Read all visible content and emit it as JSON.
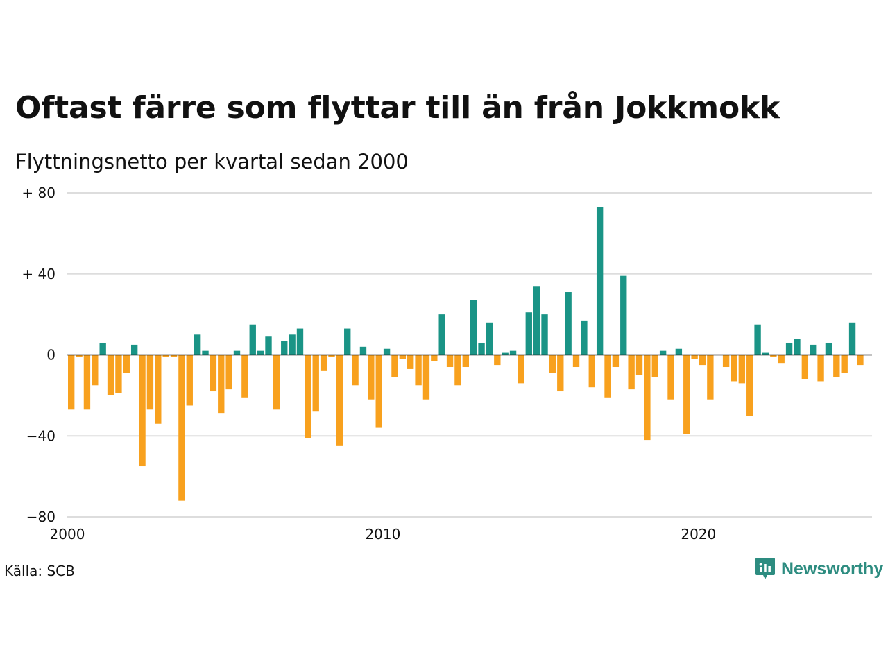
{
  "header": {
    "title": "Oftast färre som flyttar till än från Jokkmokk",
    "subtitle": "Flyttningsnetto per kvartal sedan 2000"
  },
  "footer": {
    "source": "Källa: SCB",
    "brand": "Newsworthy",
    "brand_icon": "newsworthy-logo-icon"
  },
  "colors": {
    "positive": "#1a9486",
    "negative": "#f8a11e",
    "grid": "#dddddd",
    "baseline": "#111111"
  },
  "chart_data": {
    "type": "bar",
    "title": "Oftast färre som flyttar till än från Jokkmokk",
    "subtitle": "Flyttningsnetto per kvartal sedan 2000",
    "xlabel": "",
    "ylabel": "",
    "x_start": "2000 Q1",
    "x_ticks": [
      {
        "year": 2000,
        "label": "2000"
      },
      {
        "year": 2010,
        "label": "2010"
      },
      {
        "year": 2020,
        "label": "2020"
      }
    ],
    "y_ticks": [
      {
        "value": 80,
        "label": "+ 80"
      },
      {
        "value": 40,
        "label": "+ 40"
      },
      {
        "value": 0,
        "label": "0"
      },
      {
        "value": -40,
        "label": "−40"
      },
      {
        "value": -80,
        "label": "−80"
      }
    ],
    "ylim": [
      -80,
      80
    ],
    "xlim": [
      2000,
      2025.5
    ],
    "grid": true,
    "quarters": [
      "2000 Q1",
      "2000 Q2",
      "2000 Q3",
      "2000 Q4",
      "2001 Q1",
      "2001 Q2",
      "2001 Q3",
      "2001 Q4",
      "2002 Q1",
      "2002 Q2",
      "2002 Q3",
      "2002 Q4",
      "2003 Q1",
      "2003 Q2",
      "2003 Q3",
      "2003 Q4",
      "2004 Q1",
      "2004 Q2",
      "2004 Q3",
      "2004 Q4",
      "2005 Q1",
      "2005 Q2",
      "2005 Q3",
      "2005 Q4",
      "2006 Q1",
      "2006 Q2",
      "2006 Q3",
      "2006 Q4",
      "2007 Q1",
      "2007 Q2",
      "2007 Q3",
      "2007 Q4",
      "2008 Q1",
      "2008 Q2",
      "2008 Q3",
      "2008 Q4",
      "2009 Q1",
      "2009 Q2",
      "2009 Q3",
      "2009 Q4",
      "2010 Q1",
      "2010 Q2",
      "2010 Q3",
      "2010 Q4",
      "2011 Q1",
      "2011 Q2",
      "2011 Q3",
      "2011 Q4",
      "2012 Q1",
      "2012 Q2",
      "2012 Q3",
      "2012 Q4",
      "2013 Q1",
      "2013 Q2",
      "2013 Q3",
      "2013 Q4",
      "2014 Q1",
      "2014 Q2",
      "2014 Q3",
      "2014 Q4",
      "2015 Q1",
      "2015 Q2",
      "2015 Q3",
      "2015 Q4",
      "2016 Q1",
      "2016 Q2",
      "2016 Q3",
      "2016 Q4",
      "2017 Q1",
      "2017 Q2",
      "2017 Q3",
      "2017 Q4",
      "2018 Q1",
      "2018 Q2",
      "2018 Q3",
      "2018 Q4",
      "2019 Q1",
      "2019 Q2",
      "2019 Q3",
      "2019 Q4",
      "2020 Q1",
      "2020 Q2",
      "2020 Q3",
      "2020 Q4",
      "2021 Q1",
      "2021 Q2",
      "2021 Q3",
      "2021 Q4",
      "2022 Q1",
      "2022 Q2",
      "2022 Q3",
      "2022 Q4",
      "2023 Q1",
      "2023 Q2",
      "2023 Q3",
      "2023 Q4",
      "2024 Q1",
      "2024 Q2",
      "2024 Q3",
      "2024 Q4",
      "2025 Q1"
    ],
    "values": [
      -27,
      -1,
      -27,
      -15,
      6,
      -20,
      -19,
      -9,
      5,
      -55,
      -27,
      -34,
      -1,
      -1,
      -72,
      -25,
      10,
      2,
      -18,
      -29,
      -17,
      2,
      -21,
      15,
      2,
      9,
      -27,
      7,
      10,
      13,
      -41,
      -28,
      -8,
      -1,
      -45,
      13,
      -15,
      4,
      -22,
      -36,
      3,
      -11,
      -2,
      -7,
      -15,
      -22,
      -3,
      20,
      -6,
      -15,
      -6,
      27,
      6,
      16,
      -5,
      1,
      2,
      -14,
      21,
      34,
      20,
      -9,
      -18,
      31,
      -6,
      17,
      -16,
      73,
      -21,
      -6,
      39,
      -17,
      -10,
      -42,
      -11,
      2,
      -22,
      3,
      -39,
      -2,
      -5,
      -22,
      0,
      -6,
      -13,
      -14,
      -30,
      15,
      1,
      -1,
      -4,
      6,
      8,
      -12,
      5,
      -13,
      6,
      -11,
      -9,
      16,
      -5
    ]
  }
}
